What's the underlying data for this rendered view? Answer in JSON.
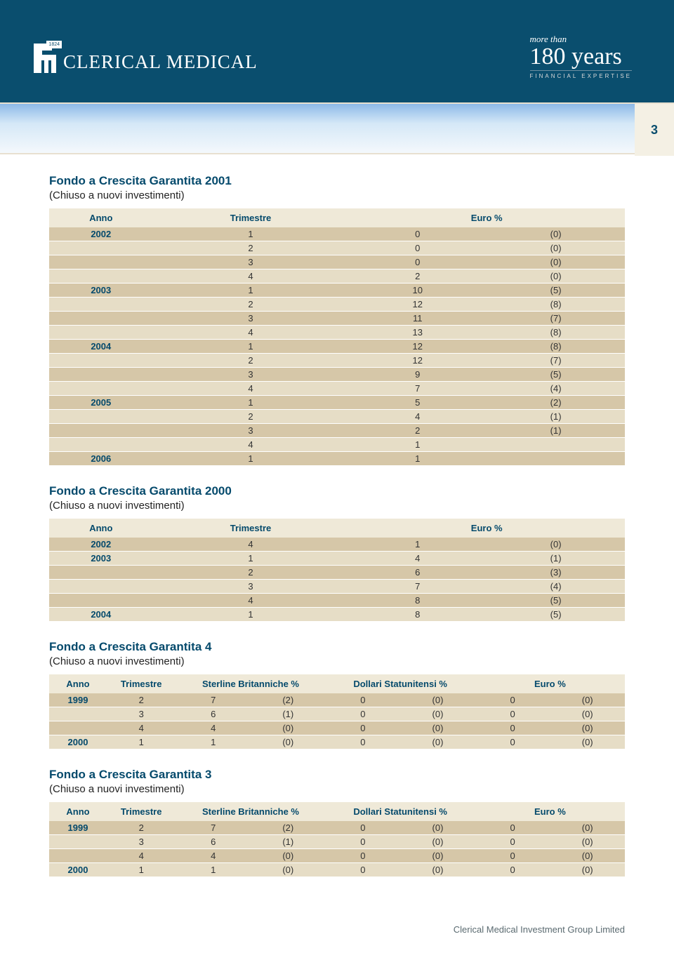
{
  "header": {
    "logo_year": "1824",
    "brand": "CLERICAL MEDICAL",
    "badge_more": "more than",
    "badge_years": "180 years",
    "badge_tag": "FINANCIAL EXPERTISE"
  },
  "page_number": "3",
  "colors": {
    "brand_navy": "#0a4e6e",
    "header_cream": "#efe9d8",
    "row_dark": "#d6c7a8",
    "row_light": "#e6ddc6",
    "title_blue": "#054a6c"
  },
  "labels": {
    "anno": "Anno",
    "trimestre": "Trimestre",
    "euro_pct": "Euro %",
    "gbp_pct": "Sterline Britanniche %",
    "usd_pct": "Dollari Statunitensi %"
  },
  "tables": [
    {
      "title": "Fondo a Crescita Garantita 2001",
      "subtitle": "(Chiuso a nuovi investimenti)",
      "layout": "narrow",
      "rows": [
        {
          "anno": "2002",
          "trim": "1",
          "ev": "0",
          "ep": "(0)"
        },
        {
          "anno": "",
          "trim": "2",
          "ev": "0",
          "ep": "(0)"
        },
        {
          "anno": "",
          "trim": "3",
          "ev": "0",
          "ep": "(0)"
        },
        {
          "anno": "",
          "trim": "4",
          "ev": "2",
          "ep": "(0)"
        },
        {
          "anno": "2003",
          "trim": "1",
          "ev": "10",
          "ep": "(5)"
        },
        {
          "anno": "",
          "trim": "2",
          "ev": "12",
          "ep": "(8)"
        },
        {
          "anno": "",
          "trim": "3",
          "ev": "11",
          "ep": "(7)"
        },
        {
          "anno": "",
          "trim": "4",
          "ev": "13",
          "ep": "(8)"
        },
        {
          "anno": "2004",
          "trim": "1",
          "ev": "12",
          "ep": "(8)"
        },
        {
          "anno": "",
          "trim": "2",
          "ev": "12",
          "ep": "(7)"
        },
        {
          "anno": "",
          "trim": "3",
          "ev": "9",
          "ep": "(5)"
        },
        {
          "anno": "",
          "trim": "4",
          "ev": "7",
          "ep": "(4)"
        },
        {
          "anno": "2005",
          "trim": "1",
          "ev": "5",
          "ep": "(2)"
        },
        {
          "anno": "",
          "trim": "2",
          "ev": "4",
          "ep": "(1)"
        },
        {
          "anno": "",
          "trim": "3",
          "ev": "2",
          "ep": "(1)"
        },
        {
          "anno": "",
          "trim": "4",
          "ev": "1",
          "ep": ""
        },
        {
          "anno": "2006",
          "trim": "1",
          "ev": "1",
          "ep": ""
        }
      ]
    },
    {
      "title": "Fondo a Crescita Garantita 2000",
      "subtitle": "(Chiuso a nuovi investimenti)",
      "layout": "narrow",
      "rows": [
        {
          "anno": "2002",
          "trim": "4",
          "ev": "1",
          "ep": "(0)"
        },
        {
          "anno": "2003",
          "trim": "1",
          "ev": "4",
          "ep": "(1)"
        },
        {
          "anno": "",
          "trim": "2",
          "ev": "6",
          "ep": "(3)"
        },
        {
          "anno": "",
          "trim": "3",
          "ev": "7",
          "ep": "(4)"
        },
        {
          "anno": "",
          "trim": "4",
          "ev": "8",
          "ep": "(5)"
        },
        {
          "anno": "2004",
          "trim": "1",
          "ev": "8",
          "ep": "(5)"
        }
      ]
    },
    {
      "title": "Fondo a Crescita Garantita 4",
      "subtitle": "(Chiuso a nuovi investimenti)",
      "layout": "wide",
      "rows": [
        {
          "anno": "1999",
          "trim": "2",
          "gv": "7",
          "gp": "(2)",
          "uv": "0",
          "up": "(0)",
          "ev": "0",
          "ep": "(0)"
        },
        {
          "anno": "",
          "trim": "3",
          "gv": "6",
          "gp": "(1)",
          "uv": "0",
          "up": "(0)",
          "ev": "0",
          "ep": "(0)"
        },
        {
          "anno": "",
          "trim": "4",
          "gv": "4",
          "gp": "(0)",
          "uv": "0",
          "up": "(0)",
          "ev": "0",
          "ep": "(0)"
        },
        {
          "anno": "2000",
          "trim": "1",
          "gv": "1",
          "gp": "(0)",
          "uv": "0",
          "up": "(0)",
          "ev": "0",
          "ep": "(0)"
        }
      ]
    },
    {
      "title": "Fondo a Crescita Garantita 3",
      "subtitle": "(Chiuso a nuovi investimenti)",
      "layout": "wide",
      "rows": [
        {
          "anno": "1999",
          "trim": "2",
          "gv": "7",
          "gp": "(2)",
          "uv": "0",
          "up": "(0)",
          "ev": "0",
          "ep": "(0)"
        },
        {
          "anno": "",
          "trim": "3",
          "gv": "6",
          "gp": "(1)",
          "uv": "0",
          "up": "(0)",
          "ev": "0",
          "ep": "(0)"
        },
        {
          "anno": "",
          "trim": "4",
          "gv": "4",
          "gp": "(0)",
          "uv": "0",
          "up": "(0)",
          "ev": "0",
          "ep": "(0)"
        },
        {
          "anno": "2000",
          "trim": "1",
          "gv": "1",
          "gp": "(0)",
          "uv": "0",
          "up": "(0)",
          "ev": "0",
          "ep": "(0)"
        }
      ]
    }
  ],
  "footer": "Clerical Medical Investment Group Limited"
}
